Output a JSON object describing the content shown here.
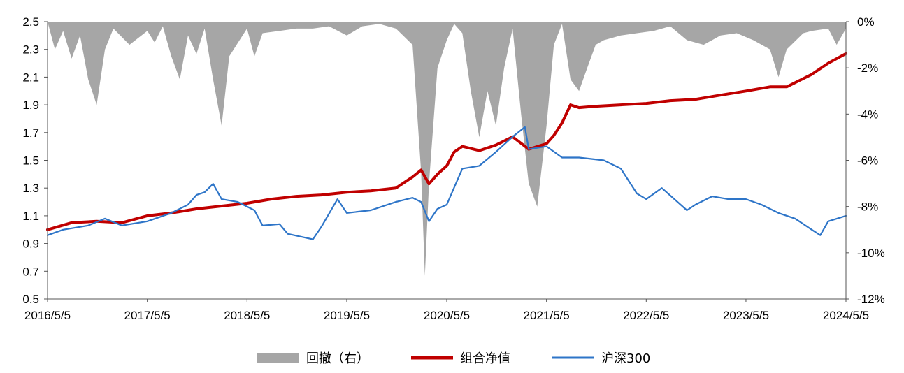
{
  "chart_data": {
    "type": "line",
    "title": "",
    "x": {
      "ticks": [
        "2016/5/5",
        "2017/5/5",
        "2018/5/5",
        "2019/5/5",
        "2020/5/5",
        "2021/5/5",
        "2022/5/5",
        "2023/5/5",
        "2024/5/5"
      ],
      "range": [
        "2016/5/5",
        "2024/5/5"
      ]
    },
    "y_left": {
      "range": [
        0.5,
        2.5
      ],
      "ticks": [
        "0.5",
        "0.7",
        "0.9",
        "1.1",
        "1.3",
        "1.5",
        "1.7",
        "1.9",
        "2.1",
        "2.3",
        "2.5"
      ]
    },
    "y_right": {
      "range": [
        -12,
        0
      ],
      "unit": "%",
      "ticks": [
        "0%",
        "-2%",
        "-4%",
        "-6%",
        "-8%",
        "-10%",
        "-12%"
      ]
    },
    "legend": {
      "position": "bottom-center"
    },
    "series": [
      {
        "name": "回撤（右）",
        "type": "area",
        "axis": "right",
        "color": "#a6a6a6",
        "points": [
          [
            "2016/5/5",
            0
          ],
          [
            "2016/6/1",
            -1.2
          ],
          [
            "2016/7/1",
            -0.4
          ],
          [
            "2016/8/1",
            -1.6
          ],
          [
            "2016/9/1",
            -0.6
          ],
          [
            "2016/10/1",
            -2.5
          ],
          [
            "2016/11/1",
            -3.6
          ],
          [
            "2016/12/1",
            -1.2
          ],
          [
            "2017/1/1",
            -0.3
          ],
          [
            "2017/3/1",
            -1.0
          ],
          [
            "2017/5/5",
            -0.4
          ],
          [
            "2017/6/1",
            -0.9
          ],
          [
            "2017/7/1",
            -0.2
          ],
          [
            "2017/8/1",
            -1.5
          ],
          [
            "2017/9/1",
            -2.5
          ],
          [
            "2017/10/1",
            -0.6
          ],
          [
            "2017/11/1",
            -1.4
          ],
          [
            "2017/12/1",
            -0.3
          ],
          [
            "2018/1/1",
            -2.5
          ],
          [
            "2018/2/1",
            -4.5
          ],
          [
            "2018/3/1",
            -1.5
          ],
          [
            "2018/5/5",
            -0.3
          ],
          [
            "2018/6/1",
            -1.5
          ],
          [
            "2018/7/1",
            -0.5
          ],
          [
            "2018/9/1",
            -0.4
          ],
          [
            "2018/11/1",
            -0.3
          ],
          [
            "2019/1/1",
            -0.3
          ],
          [
            "2019/3/1",
            -0.2
          ],
          [
            "2019/5/5",
            -0.6
          ],
          [
            "2019/7/1",
            -0.2
          ],
          [
            "2019/9/1",
            -0.1
          ],
          [
            "2019/11/1",
            -0.3
          ],
          [
            "2020/1/1",
            -1.0
          ],
          [
            "2020/2/1",
            -6.5
          ],
          [
            "2020/2/15",
            -11.0
          ],
          [
            "2020/3/1",
            -7.0
          ],
          [
            "2020/4/1",
            -2.0
          ],
          [
            "2020/5/5",
            -0.8
          ],
          [
            "2020/6/1",
            -0.1
          ],
          [
            "2020/7/1",
            -0.5
          ],
          [
            "2020/8/1",
            -3.0
          ],
          [
            "2020/9/1",
            -5.0
          ],
          [
            "2020/10/1",
            -3.0
          ],
          [
            "2020/11/1",
            -4.5
          ],
          [
            "2020/12/1",
            -2.0
          ],
          [
            "2021/1/1",
            -0.3
          ],
          [
            "2021/2/1",
            -4.0
          ],
          [
            "2021/3/1",
            -7.0
          ],
          [
            "2021/4/1",
            -8.0
          ],
          [
            "2021/5/5",
            -4.5
          ],
          [
            "2021/6/1",
            -1.0
          ],
          [
            "2021/7/1",
            -0.1
          ],
          [
            "2021/8/1",
            -2.5
          ],
          [
            "2021/9/1",
            -3.0
          ],
          [
            "2021/10/1",
            -2.0
          ],
          [
            "2021/11/1",
            -1.0
          ],
          [
            "2021/12/1",
            -0.8
          ],
          [
            "2022/2/1",
            -0.6
          ],
          [
            "2022/4/1",
            -0.5
          ],
          [
            "2022/6/1",
            -0.4
          ],
          [
            "2022/8/1",
            -0.2
          ],
          [
            "2022/10/1",
            -0.8
          ],
          [
            "2022/12/1",
            -1.0
          ],
          [
            "2023/2/1",
            -0.6
          ],
          [
            "2023/4/1",
            -0.5
          ],
          [
            "2023/6/1",
            -0.8
          ],
          [
            "2023/8/1",
            -1.2
          ],
          [
            "2023/9/1",
            -2.4
          ],
          [
            "2023/10/1",
            -1.2
          ],
          [
            "2023/12/1",
            -0.5
          ],
          [
            "2024/1/1",
            -0.4
          ],
          [
            "2024/3/1",
            -0.3
          ],
          [
            "2024/4/1",
            -1.0
          ],
          [
            "2024/5/5",
            -0.3
          ]
        ]
      },
      {
        "name": "组合净值",
        "type": "line",
        "axis": "left",
        "color": "#c00000",
        "points": [
          [
            "2016/5/5",
            1.0
          ],
          [
            "2016/8/1",
            1.05
          ],
          [
            "2016/11/1",
            1.06
          ],
          [
            "2017/2/1",
            1.05
          ],
          [
            "2017/5/5",
            1.1
          ],
          [
            "2017/8/1",
            1.12
          ],
          [
            "2017/11/1",
            1.15
          ],
          [
            "2018/2/1",
            1.17
          ],
          [
            "2018/5/5",
            1.19
          ],
          [
            "2018/8/1",
            1.22
          ],
          [
            "2018/11/1",
            1.24
          ],
          [
            "2019/2/1",
            1.25
          ],
          [
            "2019/5/5",
            1.27
          ],
          [
            "2019/8/1",
            1.28
          ],
          [
            "2019/11/1",
            1.3
          ],
          [
            "2020/1/1",
            1.38
          ],
          [
            "2020/2/1",
            1.43
          ],
          [
            "2020/3/1",
            1.33
          ],
          [
            "2020/4/1",
            1.4
          ],
          [
            "2020/5/5",
            1.46
          ],
          [
            "2020/6/1",
            1.56
          ],
          [
            "2020/7/1",
            1.6
          ],
          [
            "2020/9/1",
            1.57
          ],
          [
            "2020/11/1",
            1.61
          ],
          [
            "2021/1/1",
            1.67
          ],
          [
            "2021/3/1",
            1.58
          ],
          [
            "2021/5/5",
            1.62
          ],
          [
            "2021/6/1",
            1.68
          ],
          [
            "2021/7/1",
            1.77
          ],
          [
            "2021/8/1",
            1.9
          ],
          [
            "2021/9/1",
            1.88
          ],
          [
            "2021/11/1",
            1.89
          ],
          [
            "2022/2/1",
            1.9
          ],
          [
            "2022/5/5",
            1.91
          ],
          [
            "2022/8/1",
            1.93
          ],
          [
            "2022/11/1",
            1.94
          ],
          [
            "2023/2/1",
            1.97
          ],
          [
            "2023/5/5",
            2.0
          ],
          [
            "2023/8/1",
            2.03
          ],
          [
            "2023/10/1",
            2.03
          ],
          [
            "2024/1/1",
            2.12
          ],
          [
            "2024/3/1",
            2.2
          ],
          [
            "2024/5/5",
            2.27
          ]
        ]
      },
      {
        "name": "沪深300",
        "type": "line",
        "axis": "left",
        "color": "#2e75c8",
        "points": [
          [
            "2016/5/5",
            0.96
          ],
          [
            "2016/7/1",
            1.0
          ],
          [
            "2016/10/1",
            1.03
          ],
          [
            "2016/12/1",
            1.08
          ],
          [
            "2017/2/1",
            1.03
          ],
          [
            "2017/5/5",
            1.06
          ],
          [
            "2017/8/1",
            1.12
          ],
          [
            "2017/10/1",
            1.18
          ],
          [
            "2017/11/1",
            1.25
          ],
          [
            "2017/12/1",
            1.27
          ],
          [
            "2018/1/1",
            1.33
          ],
          [
            "2018/2/1",
            1.22
          ],
          [
            "2018/4/1",
            1.2
          ],
          [
            "2018/6/1",
            1.14
          ],
          [
            "2018/7/1",
            1.03
          ],
          [
            "2018/9/1",
            1.04
          ],
          [
            "2018/10/1",
            0.97
          ],
          [
            "2019/1/1",
            0.93
          ],
          [
            "2019/2/1",
            1.02
          ],
          [
            "2019/4/1",
            1.22
          ],
          [
            "2019/5/5",
            1.12
          ],
          [
            "2019/8/1",
            1.14
          ],
          [
            "2019/11/1",
            1.2
          ],
          [
            "2020/1/1",
            1.23
          ],
          [
            "2020/2/1",
            1.2
          ],
          [
            "2020/3/1",
            1.06
          ],
          [
            "2020/4/1",
            1.15
          ],
          [
            "2020/5/5",
            1.18
          ],
          [
            "2020/7/1",
            1.44
          ],
          [
            "2020/9/1",
            1.46
          ],
          [
            "2020/11/1",
            1.56
          ],
          [
            "2021/1/1",
            1.67
          ],
          [
            "2021/2/15",
            1.74
          ],
          [
            "2021/3/1",
            1.58
          ],
          [
            "2021/5/5",
            1.6
          ],
          [
            "2021/7/1",
            1.52
          ],
          [
            "2021/9/1",
            1.52
          ],
          [
            "2021/12/1",
            1.5
          ],
          [
            "2022/2/1",
            1.44
          ],
          [
            "2022/4/1",
            1.26
          ],
          [
            "2022/5/5",
            1.22
          ],
          [
            "2022/7/1",
            1.3
          ],
          [
            "2022/10/1",
            1.14
          ],
          [
            "2022/11/1",
            1.18
          ],
          [
            "2023/1/1",
            1.24
          ],
          [
            "2023/3/1",
            1.22
          ],
          [
            "2023/5/5",
            1.22
          ],
          [
            "2023/7/1",
            1.18
          ],
          [
            "2023/9/1",
            1.12
          ],
          [
            "2023/11/1",
            1.08
          ],
          [
            "2024/1/1",
            1.0
          ],
          [
            "2024/2/1",
            0.96
          ],
          [
            "2024/3/1",
            1.06
          ],
          [
            "2024/5/5",
            1.1
          ]
        ]
      }
    ]
  }
}
